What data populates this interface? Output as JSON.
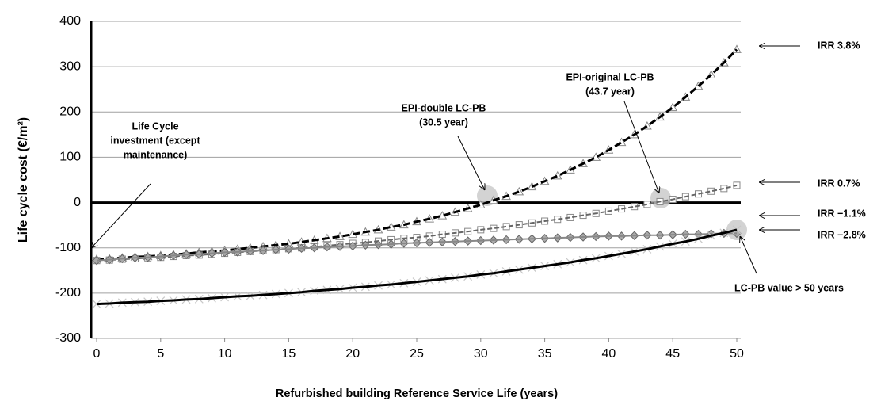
{
  "chart_data": {
    "type": "line",
    "ylabel": "Life cycle cost (€/m²)",
    "xlabel": "Refurbished building Reference Service Life (years)",
    "x": [
      0,
      1,
      2,
      3,
      4,
      5,
      6,
      7,
      8,
      9,
      10,
      11,
      12,
      13,
      14,
      15,
      16,
      17,
      18,
      19,
      20,
      21,
      22,
      23,
      24,
      25,
      26,
      27,
      28,
      29,
      30,
      31,
      32,
      33,
      34,
      35,
      36,
      37,
      38,
      39,
      40,
      41,
      42,
      43,
      44,
      45,
      46,
      47,
      48,
      49,
      50
    ],
    "xlim": [
      0,
      50
    ],
    "xticks": [
      0,
      5,
      10,
      15,
      20,
      25,
      30,
      35,
      40,
      45,
      50
    ],
    "ylim": [
      -300,
      400
    ],
    "yticks": [
      -300,
      -200,
      -100,
      0,
      100,
      200,
      300,
      400
    ],
    "grid": true,
    "series": [
      {
        "color": "#000000",
        "marker": "triangle",
        "dashed": true,
        "values": [
          -125,
          -124,
          -122,
          -120,
          -119,
          -117,
          -115,
          -113,
          -110,
          -108,
          -106,
          -103,
          -100,
          -97,
          -94,
          -91,
          -87,
          -83,
          -79,
          -75,
          -70,
          -65,
          -60,
          -54,
          -49,
          -42,
          -36,
          -29,
          -21,
          -13,
          -5,
          5,
          14,
          24,
          35,
          47,
          59,
          72,
          86,
          100,
          116,
          133,
          150,
          169,
          189,
          210,
          233,
          257,
          282,
          309,
          338
        ]
      },
      {
        "color": "#666666",
        "marker": "square",
        "dashed": true,
        "values": [
          -128,
          -127,
          -125,
          -124,
          -122,
          -121,
          -119,
          -117,
          -116,
          -114,
          -112,
          -110,
          -108,
          -106,
          -104,
          -102,
          -100,
          -98,
          -95,
          -93,
          -90,
          -88,
          -85,
          -82,
          -79,
          -77,
          -74,
          -70,
          -67,
          -64,
          -60,
          -57,
          -53,
          -49,
          -45,
          -41,
          -37,
          -33,
          -28,
          -24,
          -19,
          -14,
          -9,
          -4,
          2,
          7,
          13,
          19,
          25,
          31,
          38
        ]
      },
      {
        "color": "#888888",
        "marker": "diamond",
        "dashed": false,
        "values": [
          -128,
          -126,
          -124,
          -122,
          -121,
          -119,
          -117,
          -115,
          -114,
          -112,
          -110,
          -109,
          -107,
          -106,
          -104,
          -103,
          -101,
          -100,
          -98,
          -97,
          -96,
          -94,
          -93,
          -92,
          -90,
          -89,
          -88,
          -87,
          -86,
          -85,
          -84,
          -83,
          -82,
          -81,
          -80,
          -79,
          -78,
          -77,
          -76,
          -75,
          -74,
          -74,
          -73,
          -72,
          -72,
          -71,
          -70,
          -70,
          -69,
          -68,
          -68
        ]
      },
      {
        "color": "#000000",
        "marker": "cross",
        "dashed": false,
        "values": [
          -224,
          -223,
          -221,
          -220,
          -219,
          -217,
          -216,
          -214,
          -213,
          -211,
          -209,
          -207,
          -206,
          -204,
          -202,
          -200,
          -198,
          -195,
          -193,
          -191,
          -188,
          -186,
          -183,
          -181,
          -178,
          -175,
          -172,
          -169,
          -166,
          -163,
          -159,
          -156,
          -152,
          -148,
          -144,
          -140,
          -136,
          -132,
          -127,
          -123,
          -118,
          -113,
          -108,
          -103,
          -97,
          -91,
          -86,
          -80,
          -73,
          -67,
          -60
        ]
      }
    ],
    "annotations": [
      {
        "text": [
          "Life Cycle",
          "investment (except",
          "maintenance)"
        ]
      },
      {
        "text": [
          "EPI-double LC-PB",
          "(30.5 year)"
        ]
      },
      {
        "text": [
          "EPI-original LC-PB",
          "(43.7 year)"
        ]
      },
      {
        "text": [
          "LC-PB  value  >  50 years"
        ]
      },
      {
        "text": [
          "IRR 3.8%"
        ]
      },
      {
        "text": [
          "IRR 0.7%"
        ]
      },
      {
        "text": [
          "IRR −1.1%"
        ]
      },
      {
        "text": [
          "IRR −2.8%"
        ]
      }
    ]
  }
}
